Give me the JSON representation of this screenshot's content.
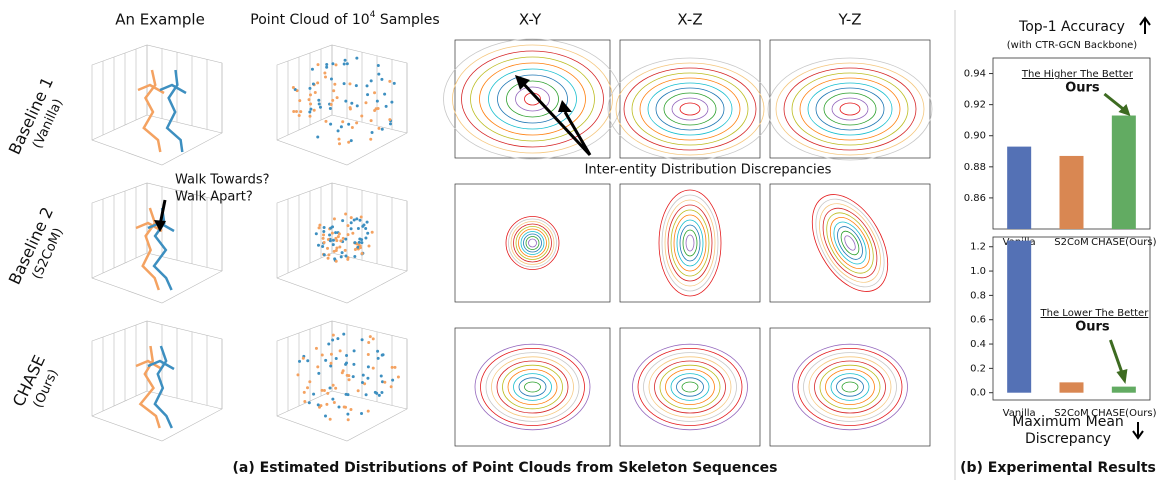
{
  "column_headers": [
    "An Example",
    {
      "text": "Point Cloud of 10",
      "sup": "4",
      "tail": " Samples"
    },
    "X-Y",
    "X-Z",
    "Y-Z"
  ],
  "row_labels": [
    [
      "Baseline 1",
      "(Vanilla)"
    ],
    [
      "Baseline 2",
      "(S2CoM)"
    ],
    [
      "CHASE",
      "(Ours)"
    ]
  ],
  "annotations": {
    "walk": [
      "Walk Towards?",
      "Walk Apart?"
    ],
    "discrepancy": "Inter-entity Distribution Discrepancies"
  },
  "captions": {
    "left": "(a) Estimated Distributions of Point Clouds from Skeleton Sequences",
    "right": "(b) Experimental Results"
  },
  "chart_data": [
    {
      "type": "bar",
      "title": "Top-1 Accuracy",
      "subtitle": "(with CTR-GCN Backbone)",
      "categories": [
        "Vanilla",
        "S2CoM",
        "CHASE(Ours)"
      ],
      "values": [
        0.893,
        0.887,
        0.913
      ],
      "colors": [
        "#5471b5",
        "#d98752",
        "#62ab62"
      ],
      "ylim": [
        0.84,
        0.95
      ],
      "yticks": [
        0.86,
        0.88,
        {
          "value": 0.9,
          "label": "0.90"
        },
        0.92,
        0.94
      ],
      "annotation": "The Higher The Better",
      "highlight": "Ours"
    },
    {
      "type": "bar",
      "title": [
        "Maximum Mean",
        "Discrepancy"
      ],
      "categories": [
        "Vanilla",
        "S2CoM",
        "CHASE(Ours)"
      ],
      "values": [
        1.25,
        0.085,
        0.05
      ],
      "colors": [
        "#5471b5",
        "#d98752",
        "#62ab62"
      ],
      "ylim": [
        -0.06,
        1.28
      ],
      "yticks": [
        {
          "value": 0,
          "label": "0.0"
        },
        0.2,
        0.4,
        0.6,
        0.8,
        {
          "value": 1,
          "label": "1.0"
        },
        1.2
      ],
      "annotation": "The Lower The Better",
      "highlight": "Ours"
    }
  ]
}
